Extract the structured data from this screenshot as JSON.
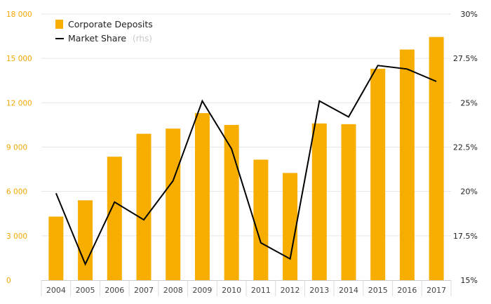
{
  "colors": {
    "bar": "#F7AE00",
    "line": "#000000",
    "left_tick": "#F0A800",
    "grid": "#e6e6e6"
  },
  "legend": {
    "bars_label": "Corporate Deposits",
    "line_label": "Market Share",
    "line_suffix": "(rhs)",
    "position": "top-left"
  },
  "chart_data": {
    "type": "bar",
    "title": "",
    "categories": [
      "2004",
      "2005",
      "2006",
      "2007",
      "2008",
      "2009",
      "2010",
      "2011",
      "2012",
      "2013",
      "2014",
      "2015",
      "2016",
      "2017"
    ],
    "series": [
      {
        "name": "Corporate Deposits",
        "type": "bar",
        "axis": "left",
        "values": [
          4300,
          5400,
          8350,
          9900,
          10250,
          11300,
          10500,
          8150,
          7250,
          10600,
          10550,
          14300,
          15600,
          16450
        ]
      },
      {
        "name": "Market Share",
        "type": "line",
        "axis": "right",
        "values": [
          19.9,
          15.9,
          19.4,
          18.4,
          20.6,
          25.1,
          22.4,
          17.1,
          16.2,
          25.1,
          24.2,
          27.1,
          26.9,
          26.2
        ]
      }
    ],
    "y_left": {
      "ylim": [
        0,
        18000
      ],
      "ticks": [
        "0",
        "3 000",
        "6 000",
        "9 000",
        "12 000",
        "15 000",
        "18 000"
      ]
    },
    "y_right": {
      "ylim": [
        15,
        30
      ],
      "ticks": [
        "15%",
        "17.5%",
        "20%",
        "22.5%",
        "25%",
        "27.5%",
        "30%"
      ]
    },
    "grid": true
  }
}
